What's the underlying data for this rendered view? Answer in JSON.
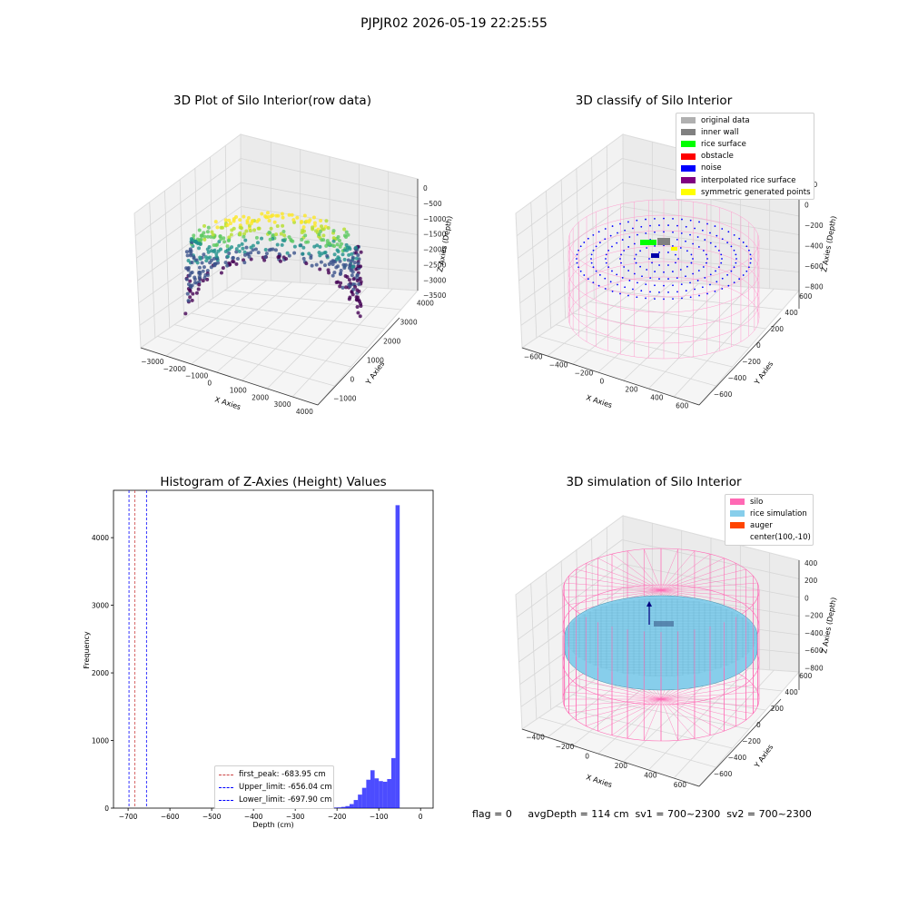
{
  "figure": {
    "suptitle": "PJPJR02 2026-05-19 22:25:55",
    "footer": "flag = 0     avgDepth = 114 cm  sv1 = 700~2300  sv2 = 700~2300"
  },
  "panels": {
    "raw": {
      "title": "3D Plot of Silo Interior(row data)",
      "xlabel": "X Axies",
      "ylabel": "Y Axies",
      "zlabel": "Z Axies (Depth)",
      "xticks": [
        "−3000",
        "−2000",
        "−1000",
        "0",
        "1000",
        "2000",
        "3000",
        "4000"
      ],
      "yticks": [
        "−1000",
        "0",
        "1000",
        "2000",
        "3000",
        "4000"
      ],
      "zticks": [
        "0",
        "−500",
        "−1000",
        "−1500",
        "−2000",
        "−2500",
        "−3000",
        "−3500"
      ]
    },
    "classify": {
      "title": "3D classify of Silo Interior",
      "xlabel": "X Axies",
      "ylabel": "Y Axies",
      "zlabel": "Z Axies (Depth)",
      "xticks": [
        "−600",
        "−400",
        "−200",
        "0",
        "200",
        "400",
        "600"
      ],
      "yticks": [
        "−600",
        "−400",
        "−200",
        "0",
        "200",
        "400",
        "600"
      ],
      "zticks": [
        "200",
        "0",
        "−200",
        "−400",
        "−600",
        "−800"
      ],
      "ztick_clipped": "00",
      "legend": [
        {
          "label": "original data",
          "color": "#b0b0b0"
        },
        {
          "label": "inner wall",
          "color": "#808080"
        },
        {
          "label": "rice surface",
          "color": "#00ff00"
        },
        {
          "label": "obstacle",
          "color": "#ff0000"
        },
        {
          "label": "noise",
          "color": "#0000ff"
        },
        {
          "label": "interpolated rice surface",
          "color": "#800080"
        },
        {
          "label": "symmetric generated points",
          "color": "#ffff00"
        }
      ]
    },
    "simulation": {
      "title": "3D simulation of Silo Interior",
      "xlabel": "X Axies",
      "ylabel": "Y Axies",
      "zlabel": "Z Axies (Depth)",
      "xticks": [
        "−400",
        "−200",
        "0",
        "200",
        "400",
        "600"
      ],
      "yticks": [
        "−600",
        "−400",
        "−200",
        "0",
        "200",
        "400",
        "600"
      ],
      "zticks": [
        "400",
        "200",
        "0",
        "−200",
        "−400",
        "−600",
        "−800"
      ],
      "legend": [
        {
          "label": "silo",
          "color": "#ff69b4"
        },
        {
          "label": "rice simulation",
          "color": "#87ceeb"
        },
        {
          "label": "auger",
          "color": "#ff4500"
        },
        {
          "label": "center(100,-10)",
          "color": "#ffffff"
        }
      ]
    }
  },
  "chart_data": {
    "type": "bar",
    "title": "Histogram of Z-Axies (Height) Values",
    "xlabel": "Depth (cm)",
    "ylabel": "Frequency",
    "xlim": [
      -735,
      30
    ],
    "ylim": [
      0,
      4700
    ],
    "xticks": [
      -700,
      -600,
      -500,
      -400,
      -300,
      -200,
      -100,
      0
    ],
    "yticks": [
      0,
      1000,
      2000,
      3000,
      4000
    ],
    "bar_color": "#0000ff",
    "bins": [
      {
        "x0": -260,
        "x1": -250,
        "count": 5
      },
      {
        "x0": -250,
        "x1": -240,
        "count": 8
      },
      {
        "x0": -240,
        "x1": -230,
        "count": 5
      },
      {
        "x0": -220,
        "x1": -210,
        "count": 5
      },
      {
        "x0": -210,
        "x1": -200,
        "count": 8
      },
      {
        "x0": -200,
        "x1": -190,
        "count": 10
      },
      {
        "x0": -190,
        "x1": -180,
        "count": 18
      },
      {
        "x0": -180,
        "x1": -170,
        "count": 30
      },
      {
        "x0": -170,
        "x1": -160,
        "count": 60
      },
      {
        "x0": -160,
        "x1": -150,
        "count": 120
      },
      {
        "x0": -150,
        "x1": -140,
        "count": 200
      },
      {
        "x0": -140,
        "x1": -130,
        "count": 300
      },
      {
        "x0": -130,
        "x1": -120,
        "count": 420
      },
      {
        "x0": -120,
        "x1": -110,
        "count": 560
      },
      {
        "x0": -110,
        "x1": -100,
        "count": 440
      },
      {
        "x0": -100,
        "x1": -90,
        "count": 400
      },
      {
        "x0": -90,
        "x1": -80,
        "count": 390
      },
      {
        "x0": -80,
        "x1": -70,
        "count": 430
      },
      {
        "x0": -70,
        "x1": -60,
        "count": 740
      },
      {
        "x0": -60,
        "x1": -50,
        "count": 4480
      }
    ],
    "vlines": [
      {
        "x": -683.95,
        "color": "#cc4444",
        "label": "first_peak: -683.95 cm"
      },
      {
        "x": -656.04,
        "color": "#0000ff",
        "label": "Upper_limit: -656.04 cm"
      },
      {
        "x": -697.9,
        "color": "#0000ff",
        "label": "Lower_limit: -697.90 cm"
      }
    ]
  }
}
